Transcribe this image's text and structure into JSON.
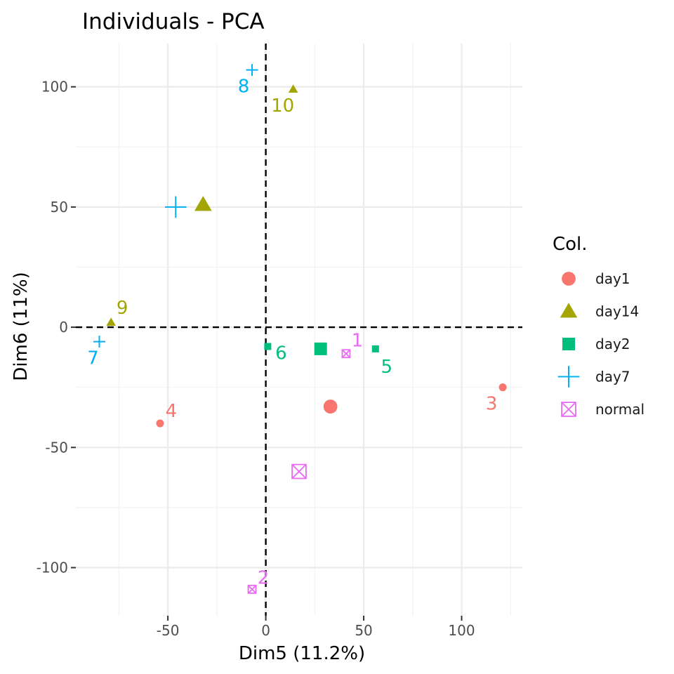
{
  "chart_data": {
    "type": "scatter",
    "title": "Individuals - PCA",
    "xlabel": "Dim5 (11.2%)",
    "ylabel": "Dim6 (11%)",
    "xlim": [
      -97,
      131
    ],
    "ylim": [
      -120,
      118
    ],
    "xticks": [
      -50,
      0,
      50,
      100
    ],
    "yticks": [
      -100,
      -50,
      0,
      50,
      100
    ],
    "grid": true,
    "reference_lines": {
      "x": 0,
      "y": 0,
      "style": "dashed"
    },
    "legend": {
      "title": "Col.",
      "placement": "right",
      "entries": [
        {
          "label": "day1",
          "color": "#F8766D",
          "shape": "circle"
        },
        {
          "label": "day14",
          "color": "#A3A500",
          "shape": "triangle"
        },
        {
          "label": "day2",
          "color": "#00BF7D",
          "shape": "square"
        },
        {
          "label": "day7",
          "color": "#00B0F6",
          "shape": "plus"
        },
        {
          "label": "normal",
          "color": "#E76BF3",
          "shape": "boxcross"
        }
      ]
    },
    "points": [
      {
        "label": "1",
        "group": "normal",
        "x": 41,
        "y": -11
      },
      {
        "label": "2",
        "group": "normal",
        "x": -7,
        "y": -109
      },
      {
        "label": "3",
        "group": "day1",
        "x": 121,
        "y": -25
      },
      {
        "label": "4",
        "group": "day1",
        "x": -54,
        "y": -40
      },
      {
        "label": "5",
        "group": "day2",
        "x": 56,
        "y": -9
      },
      {
        "label": "6",
        "group": "day2",
        "x": 1,
        "y": -8
      },
      {
        "label": "7",
        "group": "day7",
        "x": -85,
        "y": -6
      },
      {
        "label": "8",
        "group": "day7",
        "x": -7,
        "y": 107
      },
      {
        "label": "9",
        "group": "day14",
        "x": -79,
        "y": 2
      },
      {
        "label": "10",
        "group": "day14",
        "x": 14,
        "y": 99
      }
    ],
    "centroids": [
      {
        "group": "day1",
        "x": 33,
        "y": -33
      },
      {
        "group": "day14",
        "x": -32,
        "y": 51
      },
      {
        "group": "day2",
        "x": 28,
        "y": -9
      },
      {
        "group": "day7",
        "x": -46,
        "y": 50
      },
      {
        "group": "normal",
        "x": 17,
        "y": -60
      }
    ]
  }
}
